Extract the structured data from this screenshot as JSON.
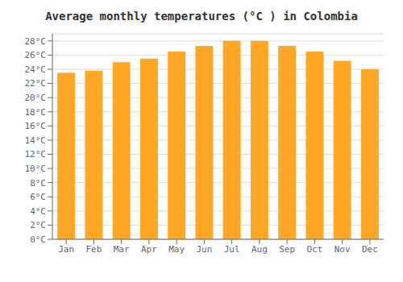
{
  "chart_data": {
    "type": "bar",
    "title": "Average monthly temperatures (°C ) in Colombia",
    "categories": [
      "Jan",
      "Feb",
      "Mar",
      "Apr",
      "May",
      "Jun",
      "Jul",
      "Aug",
      "Sep",
      "Oct",
      "Nov",
      "Dec"
    ],
    "values": [
      23.5,
      23.8,
      25.0,
      25.5,
      26.5,
      27.3,
      28.0,
      28.0,
      27.3,
      26.5,
      25.2,
      24.0
    ],
    "color": "#FFA726",
    "ylim": [
      0,
      29
    ],
    "yticks": [
      {
        "value": 0,
        "label": "0°C"
      },
      {
        "value": 2,
        "label": "2°C"
      },
      {
        "value": 4,
        "label": "4°C"
      },
      {
        "value": 6,
        "label": "6°C"
      },
      {
        "value": 8,
        "label": "8°C"
      },
      {
        "value": 10,
        "label": "10°C"
      },
      {
        "value": 12,
        "label": "12°C"
      },
      {
        "value": 14,
        "label": "14°C"
      },
      {
        "value": 16,
        "label": "16°C"
      },
      {
        "value": 18,
        "label": "18°C"
      },
      {
        "value": 20,
        "label": "20°C"
      },
      {
        "value": 22,
        "label": "22°C"
      },
      {
        "value": 24,
        "label": "24°C"
      },
      {
        "value": 26,
        "label": "26°C"
      },
      {
        "value": 28,
        "label": "28°C"
      }
    ],
    "grid": true
  }
}
